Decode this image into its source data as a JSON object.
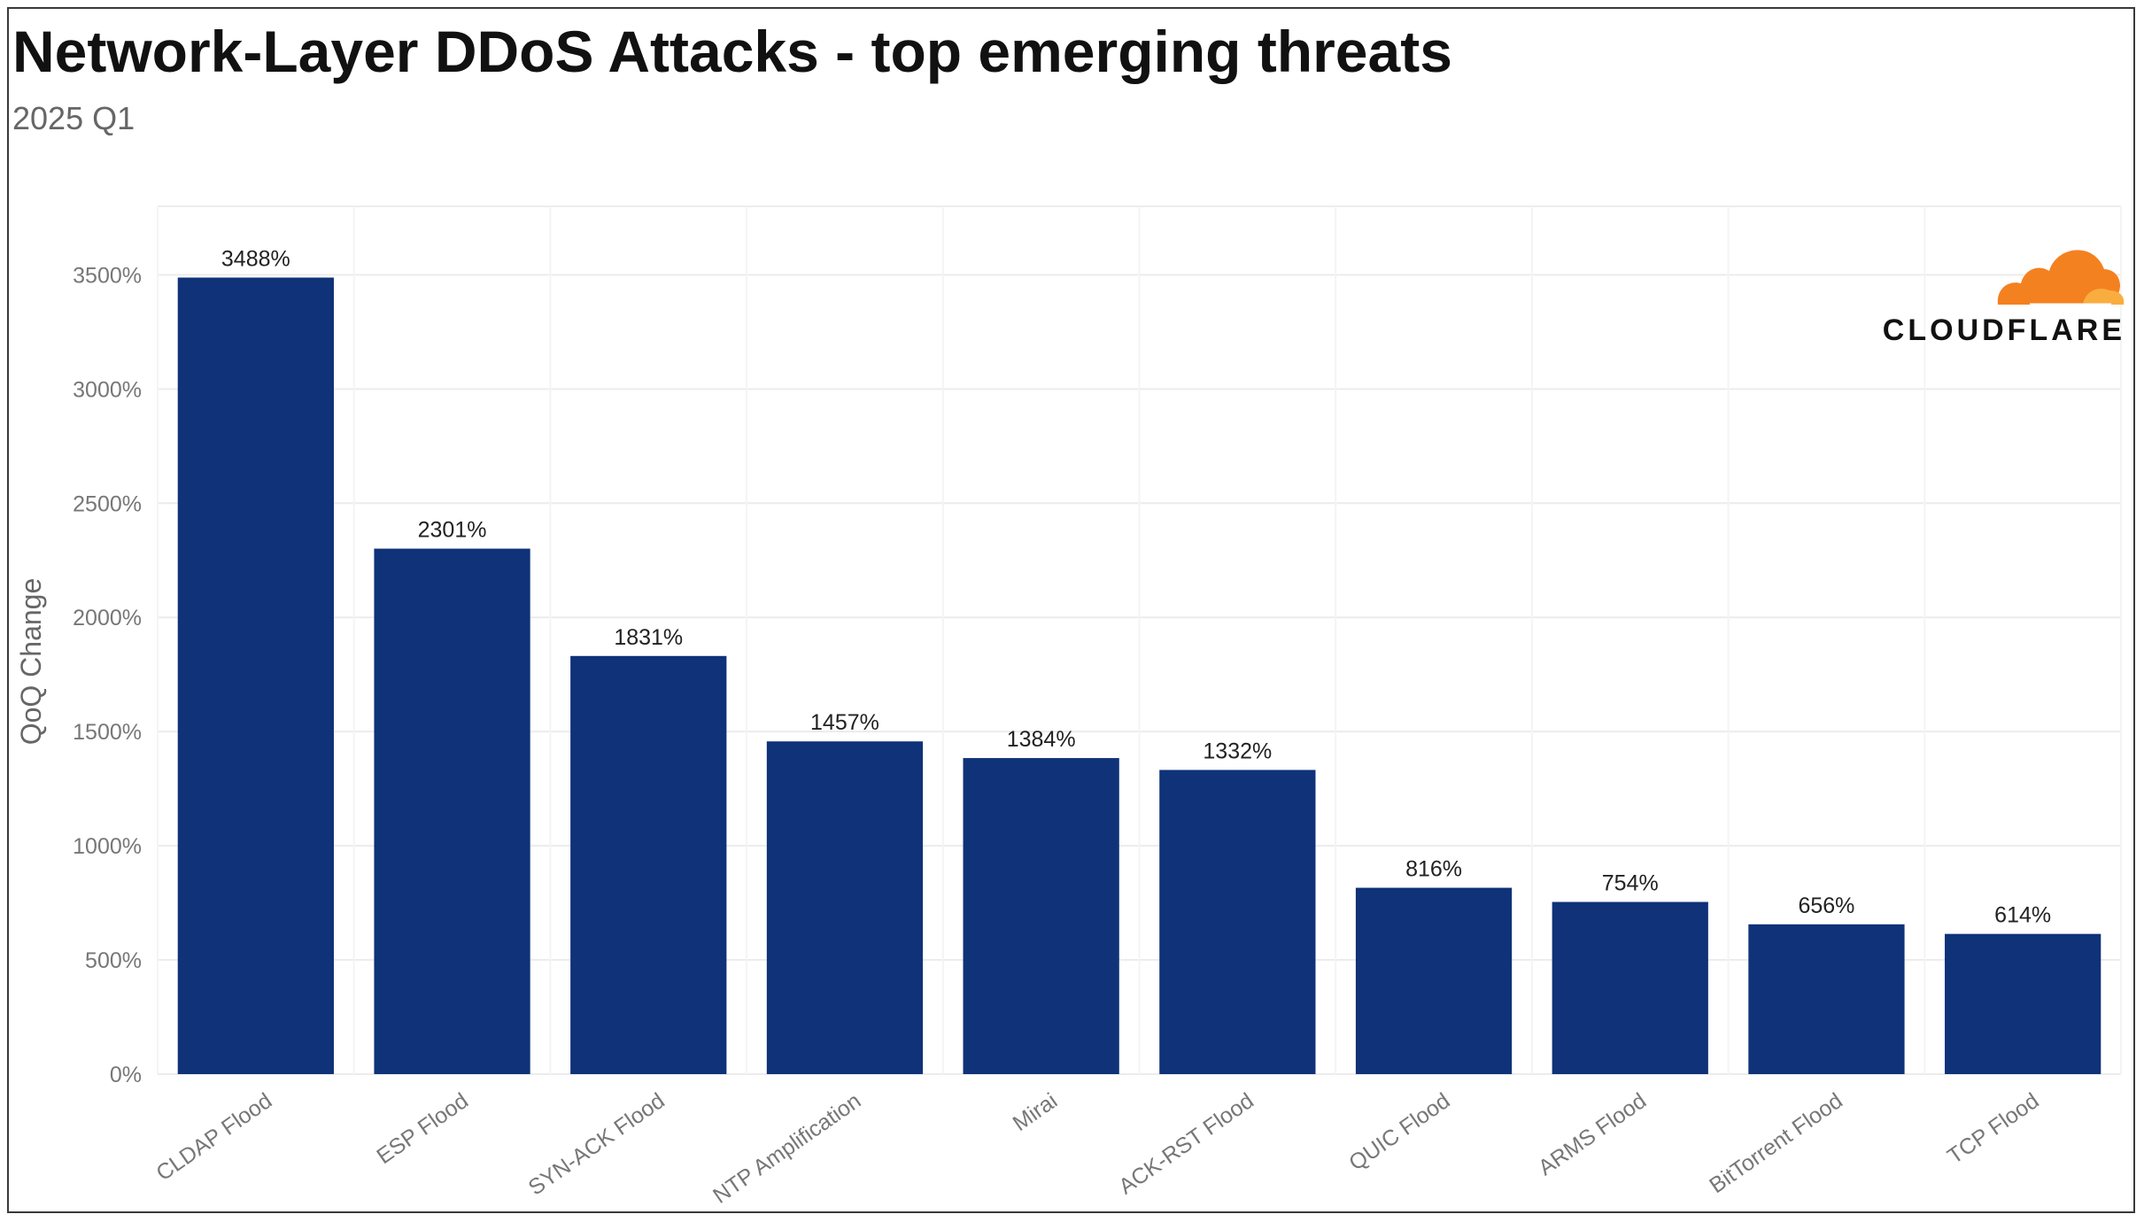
{
  "chart_data": {
    "type": "bar",
    "title": "Network-Layer DDoS Attacks - top emerging threats",
    "subtitle": "2025 Q1",
    "xlabel": "",
    "ylabel": "QoQ Change",
    "categories": [
      "CLDAP Flood",
      "ESP Flood",
      "SYN-ACK Flood",
      "NTP Amplification",
      "Mirai",
      "ACK-RST Flood",
      "QUIC Flood",
      "ARMS Flood",
      "BitTorrent Flood",
      "TCP Flood"
    ],
    "values": [
      3488,
      2301,
      1831,
      1457,
      1384,
      1332,
      816,
      754,
      656,
      614
    ],
    "data_labels": [
      "3488%",
      "2301%",
      "1831%",
      "1457%",
      "1384%",
      "1332%",
      "816%",
      "754%",
      "656%",
      "614%"
    ],
    "y_ticks": [
      0,
      500,
      1000,
      1500,
      2000,
      2500,
      3000,
      3500
    ],
    "y_tick_labels": [
      "0%",
      "500%",
      "1000%",
      "1500%",
      "2000%",
      "2500%",
      "3000%",
      "3500%"
    ],
    "ylim": [
      0,
      3800
    ],
    "grid": true,
    "legend": "none",
    "bar_color": "#0f3278",
    "grid_color": "#ececec"
  },
  "brand": {
    "wordmark": "CLOUDFLARE",
    "icon": "cloud-icon",
    "icon_colors": [
      "#f48120",
      "#faad3f"
    ]
  }
}
